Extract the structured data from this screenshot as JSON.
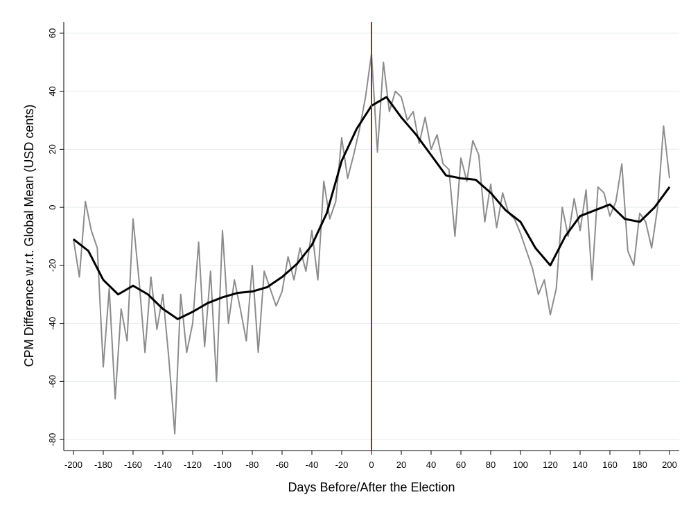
{
  "chart_data": {
    "type": "line",
    "xlabel": "Days Before/After the Election",
    "ylabel": "CPM Difference w.r.t. Global Mean (USD cents)",
    "xlim": [
      -206.5,
      206.5
    ],
    "ylim": [
      -83.8,
      63.8
    ],
    "xticks": [
      -200,
      -180,
      -160,
      -140,
      -120,
      -100,
      -80,
      -60,
      -40,
      -20,
      0,
      20,
      40,
      60,
      80,
      100,
      120,
      140,
      160,
      180,
      200
    ],
    "yticks": [
      -80,
      -60,
      -40,
      -20,
      0,
      20,
      40,
      60
    ],
    "grid": true,
    "vline": {
      "x": 0,
      "color": "#c8102e"
    },
    "series": [
      {
        "color": "#8c8c8c",
        "width": 2,
        "x": [
          -200,
          -196,
          -192,
          -188,
          -184,
          -180,
          -176,
          -172,
          -168,
          -164,
          -160,
          -156,
          -152,
          -148,
          -144,
          -140,
          -136,
          -132,
          -128,
          -124,
          -120,
          -116,
          -112,
          -108,
          -104,
          -100,
          -96,
          -92,
          -88,
          -84,
          -80,
          -76,
          -72,
          -68,
          -64,
          -60,
          -56,
          -52,
          -48,
          -44,
          -40,
          -36,
          -32,
          -28,
          -24,
          -20,
          -16,
          -12,
          -8,
          -4,
          0,
          4,
          8,
          12,
          16,
          20,
          24,
          28,
          32,
          36,
          40,
          44,
          48,
          52,
          56,
          60,
          64,
          68,
          72,
          76,
          80,
          84,
          88,
          92,
          96,
          100,
          104,
          108,
          112,
          116,
          120,
          124,
          128,
          132,
          136,
          140,
          144,
          148,
          152,
          156,
          160,
          164,
          168,
          172,
          176,
          180,
          184,
          188,
          192,
          196,
          200
        ],
        "values": [
          -11,
          -24,
          2,
          -8,
          -14,
          -55,
          -28,
          -66,
          -35,
          -46,
          -4,
          -25,
          -50,
          -24,
          -42,
          -30,
          -52,
          -78,
          -30,
          -50,
          -40,
          -12,
          -48,
          -22,
          -60,
          -8,
          -40,
          -25,
          -35,
          -46,
          -20,
          -50,
          -22,
          -28,
          -34,
          -29,
          -17,
          -25,
          -14,
          -22,
          -8,
          -25,
          9,
          -4,
          2,
          24,
          10,
          18,
          27,
          38,
          53,
          19,
          50,
          33,
          40,
          38,
          30,
          33,
          22,
          31,
          20,
          25,
          15,
          13,
          -10,
          17,
          9,
          23,
          18,
          -5,
          8,
          -7,
          5,
          -2,
          -4,
          -9,
          -15,
          -21,
          -30,
          -25,
          -37,
          -28,
          0,
          -10,
          3,
          -8,
          6,
          -25,
          7,
          5,
          -3,
          2,
          15,
          -15,
          -20,
          -2,
          -5,
          -14,
          0,
          28,
          10
        ]
      },
      {
        "color": "#000000",
        "width": 3,
        "x": [
          -200,
          -190,
          -180,
          -170,
          -160,
          -150,
          -140,
          -130,
          -120,
          -110,
          -100,
          -90,
          -80,
          -70,
          -60,
          -50,
          -40,
          -30,
          -20,
          -10,
          0,
          10,
          20,
          30,
          40,
          50,
          60,
          70,
          80,
          90,
          100,
          110,
          120,
          130,
          140,
          150,
          160,
          170,
          180,
          190,
          200
        ],
        "values": [
          -11,
          -15,
          -25,
          -30,
          -27,
          -30,
          -35,
          -38.5,
          -36,
          -33,
          -31,
          -29.5,
          -29,
          -27.5,
          -24,
          -19.5,
          -13,
          -2,
          16,
          27,
          35,
          38,
          31,
          25,
          18,
          11,
          10,
          9.5,
          5,
          -1,
          -5,
          -14,
          -20,
          -10,
          -3,
          -1,
          1,
          -4,
          -5,
          0,
          7
        ]
      }
    ]
  }
}
